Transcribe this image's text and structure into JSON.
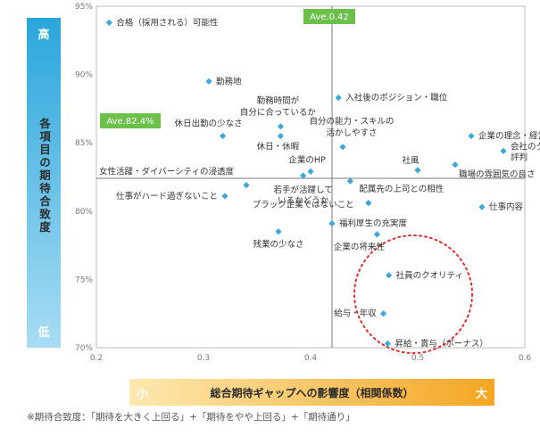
{
  "chart_data": {
    "type": "scatter",
    "xlim": [
      0.2,
      0.6
    ],
    "ylim": [
      70,
      95
    ],
    "xticks": [
      "0.2",
      "0.3",
      "0.4",
      "0.5",
      "0.6"
    ],
    "yticks": [
      "95%",
      "90%",
      "85%",
      "80%",
      "75%",
      "70%"
    ],
    "y_axis": {
      "label": "各項目の期待合致度",
      "high": "高",
      "low": "低"
    },
    "x_axis": {
      "label": "総合期待ギャップへの影響度（相関係数）",
      "low": "小",
      "high": "大"
    },
    "averages": {
      "x": 0.42,
      "x_label": "Ave.0.42",
      "y": 82.4,
      "y_label": "Ave.82.4%"
    },
    "accent_color": "#3ba7dc",
    "average_label_color": "#6cc04a",
    "highlight_circle_color": "#e0302a",
    "points": [
      {
        "label": "合格（採用される）可能性",
        "x": 0.212,
        "y": 93.8
      },
      {
        "label": "勤務地",
        "x": 0.305,
        "y": 89.5
      },
      {
        "label": "入社後のポジション・職位",
        "x": 0.426,
        "y": 88.3
      },
      {
        "label": "勤務時間が自分に合っているか",
        "x": 0.372,
        "y": 86.2
      },
      {
        "label": "休日出勤の少なさ",
        "x": 0.318,
        "y": 85.5
      },
      {
        "label": "休日・休暇",
        "x": 0.372,
        "y": 85.5
      },
      {
        "label": "自分の能力・スキルの活かしやすさ",
        "x": 0.43,
        "y": 84.7
      },
      {
        "label": "企業の理念・経営方針",
        "x": 0.55,
        "y": 85.5
      },
      {
        "label": "会社のクチコミ・評判",
        "x": 0.58,
        "y": 84.4
      },
      {
        "label": "企業のHP",
        "x": 0.4,
        "y": 82.9
      },
      {
        "label": "社風",
        "x": 0.5,
        "y": 83.0
      },
      {
        "label": "職場の雰囲気の良さ",
        "x": 0.535,
        "y": 83.4
      },
      {
        "label": "女性活躍・ダイバーシティの浸透度",
        "x": 0.34,
        "y": 81.9
      },
      {
        "label": "若手が活躍しているかどうか",
        "x": 0.393,
        "y": 82.6
      },
      {
        "label": "配属先の上司との相性",
        "x": 0.437,
        "y": 82.2
      },
      {
        "label": "仕事がハード過ぎないこと",
        "x": 0.32,
        "y": 81.1
      },
      {
        "label": "ブラック企業ではないこと",
        "x": 0.454,
        "y": 80.6
      },
      {
        "label": "仕事内容",
        "x": 0.56,
        "y": 80.3
      },
      {
        "label": "福利厚生の充実度",
        "x": 0.42,
        "y": 79.1
      },
      {
        "label": "残業の少なさ",
        "x": 0.37,
        "y": 78.5
      },
      {
        "label": "企業の将来性",
        "x": 0.462,
        "y": 78.3
      },
      {
        "label": "社員のクオリティ",
        "x": 0.473,
        "y": 75.3
      },
      {
        "label": "給与・年収",
        "x": 0.468,
        "y": 72.5
      },
      {
        "label": "昇給・賞与（ボーナス）",
        "x": 0.472,
        "y": 70.3
      }
    ]
  },
  "footnote": "※期待合致度：「期待を大きく上回る」+「期待をやや上回る」+「期待通り」"
}
